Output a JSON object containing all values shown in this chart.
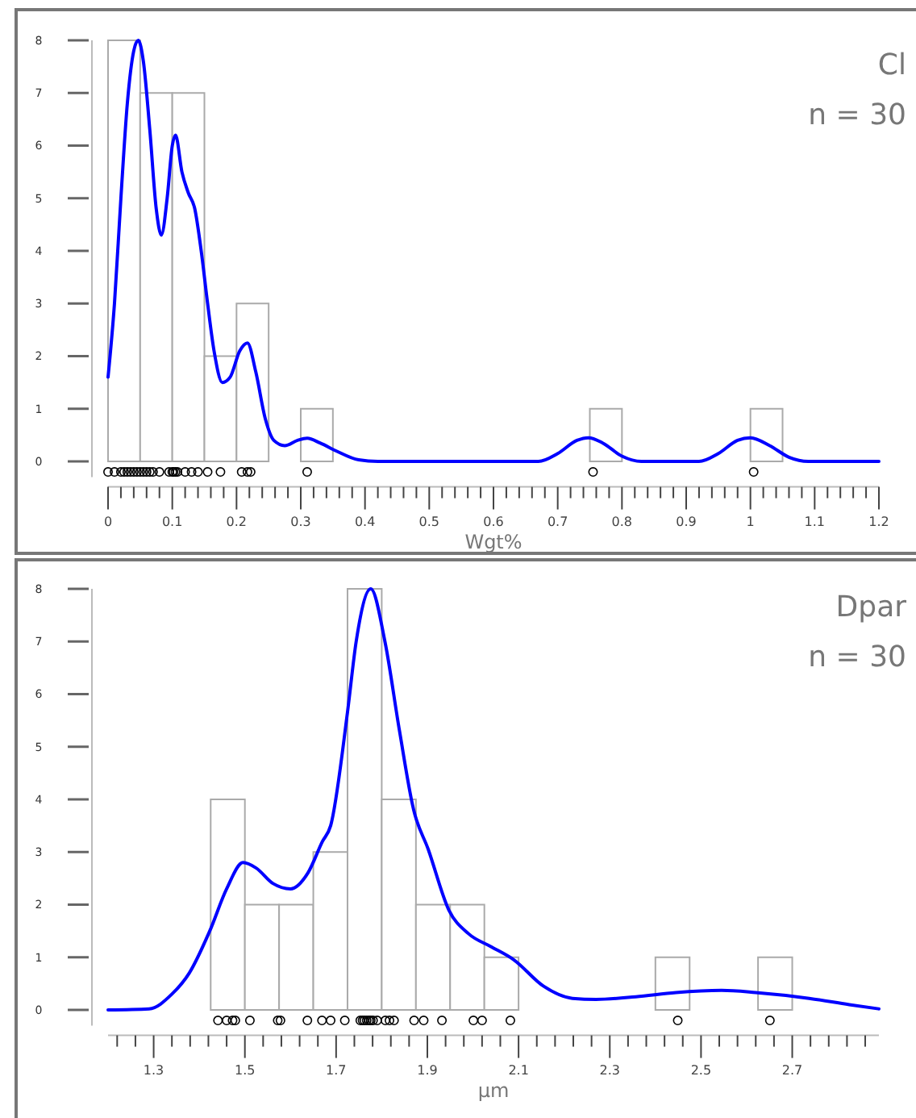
{
  "chart_data": [
    {
      "type": "histogram",
      "title": "Cl",
      "subtitle": "n = 30",
      "xlabel": "Wgt%",
      "xlim": [
        0,
        1.2
      ],
      "ylim": [
        -0.3,
        8
      ],
      "yticks": [
        0,
        1,
        2,
        3,
        4,
        5,
        6,
        7,
        8
      ],
      "xticks": [
        0,
        {
          "value": 0.02,
          "label": null
        },
        {
          "value": 0.04,
          "label": null
        },
        {
          "value": 0.06,
          "label": null
        },
        {
          "value": 0.08,
          "label": null
        },
        0.1,
        {
          "value": 0.12,
          "label": null
        },
        {
          "value": 0.14,
          "label": null
        },
        {
          "value": 0.16,
          "label": null
        },
        {
          "value": 0.18,
          "label": null
        },
        0.2,
        {
          "value": 0.22,
          "label": null
        },
        {
          "value": 0.24,
          "label": null
        },
        {
          "value": 0.26,
          "label": null
        },
        {
          "value": 0.28,
          "label": null
        },
        0.3,
        {
          "value": 0.32,
          "label": null
        },
        {
          "value": 0.34,
          "label": null
        },
        {
          "value": 0.36,
          "label": null
        },
        {
          "value": 0.38,
          "label": null
        },
        0.4,
        {
          "value": 0.42,
          "label": null
        },
        {
          "value": 0.44,
          "label": null
        },
        {
          "value": 0.46,
          "label": null
        },
        {
          "value": 0.48,
          "label": null
        },
        0.5,
        {
          "value": 0.52,
          "label": null
        },
        {
          "value": 0.54,
          "label": null
        },
        {
          "value": 0.56,
          "label": null
        },
        {
          "value": 0.58,
          "label": null
        },
        0.6,
        {
          "value": 0.62,
          "label": null
        },
        {
          "value": 0.64,
          "label": null
        },
        {
          "value": 0.66,
          "label": null
        },
        {
          "value": 0.68,
          "label": null
        },
        0.7,
        {
          "value": 0.72,
          "label": null
        },
        {
          "value": 0.74,
          "label": null
        },
        {
          "value": 0.76,
          "label": null
        },
        {
          "value": 0.78,
          "label": null
        },
        0.8,
        {
          "value": 0.82,
          "label": null
        },
        {
          "value": 0.84,
          "label": null
        },
        {
          "value": 0.86,
          "label": null
        },
        {
          "value": 0.88,
          "label": null
        },
        0.9,
        {
          "value": 0.92,
          "label": null
        },
        {
          "value": 0.94,
          "label": null
        },
        {
          "value": 0.96,
          "label": null
        },
        {
          "value": 0.98,
          "label": null
        },
        1,
        {
          "value": 1.02,
          "label": null
        },
        {
          "value": 1.04,
          "label": null
        },
        {
          "value": 1.06,
          "label": null
        },
        {
          "value": 1.08,
          "label": null
        },
        1.1,
        {
          "value": 1.12,
          "label": null
        },
        {
          "value": 1.14,
          "label": null
        },
        {
          "value": 1.16,
          "label": null
        },
        {
          "value": 1.18,
          "label": null
        },
        1.2
      ],
      "series": [
        {
          "type": "histogram",
          "color": "#aaaaaa",
          "bins": [
            0,
            0.05,
            0.1,
            0.15,
            0.2,
            0.25,
            0.3,
            0.35,
            0.4,
            0.45,
            0.5,
            0.55,
            0.6,
            0.65,
            0.7,
            0.75,
            0.8,
            0.85,
            0.9,
            0.95,
            1.0,
            1.05
          ],
          "values": [
            8,
            7,
            7,
            2,
            3,
            0,
            1,
            0,
            0,
            0,
            0,
            0,
            0,
            0,
            0,
            1,
            0,
            0,
            0,
            0,
            1
          ]
        },
        {
          "type": "line",
          "color": "#0000ff",
          "x": [
            0,
            0.01,
            0.02,
            0.03,
            0.04,
            0.047,
            0.055,
            0.065,
            0.075,
            0.083,
            0.092,
            0.1,
            0.105,
            0.115,
            0.125,
            0.135,
            0.145,
            0.155,
            0.165,
            0.178,
            0.19,
            0.205,
            0.217,
            0.23,
            0.245,
            0.258,
            0.275,
            0.295,
            0.31,
            0.33,
            0.355,
            0.39,
            0.42,
            0.67,
            0.7,
            0.73,
            0.748,
            0.77,
            0.8,
            0.83,
            0.92,
            0.95,
            0.98,
            1.0,
            1.03,
            1.06,
            1.09,
            1.2
          ],
          "values": [
            1.6,
            3,
            5,
            6.8,
            7.8,
            8,
            7.6,
            6.3,
            4.8,
            4.3,
            5,
            6,
            6.2,
            5.5,
            5.1,
            4.8,
            4,
            3,
            2.1,
            1.5,
            1.6,
            2.1,
            2.25,
            1.7,
            0.8,
            0.4,
            0.3,
            0.4,
            0.44,
            0.35,
            0.2,
            0.03,
            0,
            0,
            0.15,
            0.4,
            0.45,
            0.35,
            0.1,
            0,
            0,
            0.15,
            0.4,
            0.45,
            0.3,
            0.08,
            0,
            0
          ]
        },
        {
          "type": "scatter",
          "color": "#000000",
          "marker": "circle",
          "x": [
            0,
            0.01,
            0.02,
            0.025,
            0.03,
            0.035,
            0.04,
            0.045,
            0.05,
            0.055,
            0.06,
            0.065,
            0.07,
            0.08,
            0.095,
            0.1,
            0.102,
            0.105,
            0.108,
            0.12,
            0.13,
            0.14,
            0.155,
            0.175,
            0.208,
            0.217,
            0.222,
            0.31,
            0.755,
            1.005
          ],
          "values": [
            -0.2,
            -0.2,
            -0.2,
            -0.2,
            -0.2,
            -0.2,
            -0.2,
            -0.2,
            -0.2,
            -0.2,
            -0.2,
            -0.2,
            -0.2,
            -0.2,
            -0.2,
            -0.2,
            -0.2,
            -0.2,
            -0.2,
            -0.2,
            -0.2,
            -0.2,
            -0.2,
            -0.2,
            -0.2,
            -0.2,
            -0.2,
            -0.2,
            -0.2,
            -0.2
          ]
        }
      ]
    },
    {
      "type": "histogram",
      "title": "Dpar",
      "subtitle": "n = 30",
      "xlabel": "µm",
      "xlim": [
        1.2,
        2.89
      ],
      "ylim": [
        -0.3,
        8
      ],
      "yticks": [
        0,
        1,
        2,
        3,
        4,
        5,
        6,
        7,
        8
      ],
      "xticks": [
        {
          "value": 1.22,
          "label": null
        },
        {
          "value": 1.26,
          "label": null
        },
        1.3,
        {
          "value": 1.34,
          "label": null
        },
        {
          "value": 1.38,
          "label": null
        },
        {
          "value": 1.42,
          "label": null
        },
        {
          "value": 1.46,
          "label": null
        },
        1.5,
        {
          "value": 1.54,
          "label": null
        },
        {
          "value": 1.58,
          "label": null
        },
        {
          "value": 1.62,
          "label": null
        },
        {
          "value": 1.66,
          "label": null
        },
        1.7,
        {
          "value": 1.74,
          "label": null
        },
        {
          "value": 1.78,
          "label": null
        },
        {
          "value": 1.82,
          "label": null
        },
        {
          "value": 1.86,
          "label": null
        },
        1.9,
        {
          "value": 1.94,
          "label": null
        },
        {
          "value": 1.98,
          "label": null
        },
        {
          "value": 2.02,
          "label": null
        },
        {
          "value": 2.06,
          "label": null
        },
        2.1,
        {
          "value": 2.14,
          "label": null
        },
        {
          "value": 2.18,
          "label": null
        },
        {
          "value": 2.22,
          "label": null
        },
        {
          "value": 2.26,
          "label": null
        },
        2.3,
        {
          "value": 2.34,
          "label": null
        },
        {
          "value": 2.38,
          "label": null
        },
        {
          "value": 2.42,
          "label": null
        },
        {
          "value": 2.46,
          "label": null
        },
        2.5,
        {
          "value": 2.54,
          "label": null
        },
        {
          "value": 2.58,
          "label": null
        },
        {
          "value": 2.62,
          "label": null
        },
        {
          "value": 2.66,
          "label": null
        },
        2.7,
        {
          "value": 2.74,
          "label": null
        },
        {
          "value": 2.78,
          "label": null
        },
        {
          "value": 2.82,
          "label": null
        },
        {
          "value": 2.86,
          "label": null
        }
      ],
      "series": [
        {
          "type": "histogram",
          "color": "#aaaaaa",
          "bins": [
            1.425,
            1.5,
            1.575,
            1.65,
            1.725,
            1.8,
            1.875,
            1.95,
            2.025,
            2.1,
            2.175,
            2.25,
            2.325,
            2.4,
            2.475,
            2.55,
            2.625,
            2.7
          ],
          "values": [
            4,
            2,
            2,
            3,
            8,
            4,
            2,
            2,
            1,
            0,
            0,
            0,
            0,
            1,
            0,
            0,
            1
          ]
        },
        {
          "type": "line",
          "color": "#0000ff",
          "x": [
            1.2,
            1.29,
            1.34,
            1.378,
            1.423,
            1.46,
            1.496,
            1.524,
            1.562,
            1.6,
            1.638,
            1.67,
            1.688,
            1.725,
            1.744,
            1.776,
            1.807,
            1.839,
            1.87,
            1.902,
            1.947,
            1.99,
            2.04,
            2.09,
            2.155,
            2.218,
            2.27,
            2.357,
            2.445,
            2.545,
            2.62,
            2.737,
            2.825,
            2.89
          ],
          "values": [
            0,
            0.02,
            0.3,
            0.7,
            1.5,
            2.3,
            2.8,
            2.7,
            2.4,
            2.3,
            2.6,
            3.2,
            3.5,
            5.66,
            7,
            8,
            7,
            5.3,
            3.8,
            3.05,
            1.9,
            1.45,
            1.2,
            0.95,
            0.45,
            0.22,
            0.2,
            0.25,
            0.33,
            0.37,
            0.33,
            0.22,
            0.1,
            0.02
          ]
        },
        {
          "type": "scatter",
          "color": "#000000",
          "marker": "circle",
          "x": [
            1.441,
            1.46,
            1.473,
            1.479,
            1.511,
            1.572,
            1.578,
            1.637,
            1.669,
            1.688,
            1.719,
            1.753,
            1.758,
            1.762,
            1.767,
            1.772,
            1.776,
            1.781,
            1.79,
            1.808,
            1.817,
            1.827,
            1.871,
            1.892,
            1.932,
            2.001,
            2.02,
            2.082,
            2.449,
            2.651
          ],
          "values": [
            -0.2,
            -0.2,
            -0.2,
            -0.2,
            -0.2,
            -0.2,
            -0.2,
            -0.2,
            -0.2,
            -0.2,
            -0.2,
            -0.2,
            -0.2,
            -0.2,
            -0.2,
            -0.2,
            -0.2,
            -0.2,
            -0.2,
            -0.2,
            -0.2,
            -0.2,
            -0.2,
            -0.2,
            -0.2,
            -0.2,
            -0.2,
            -0.2,
            -0.2,
            -0.2
          ]
        }
      ]
    }
  ]
}
